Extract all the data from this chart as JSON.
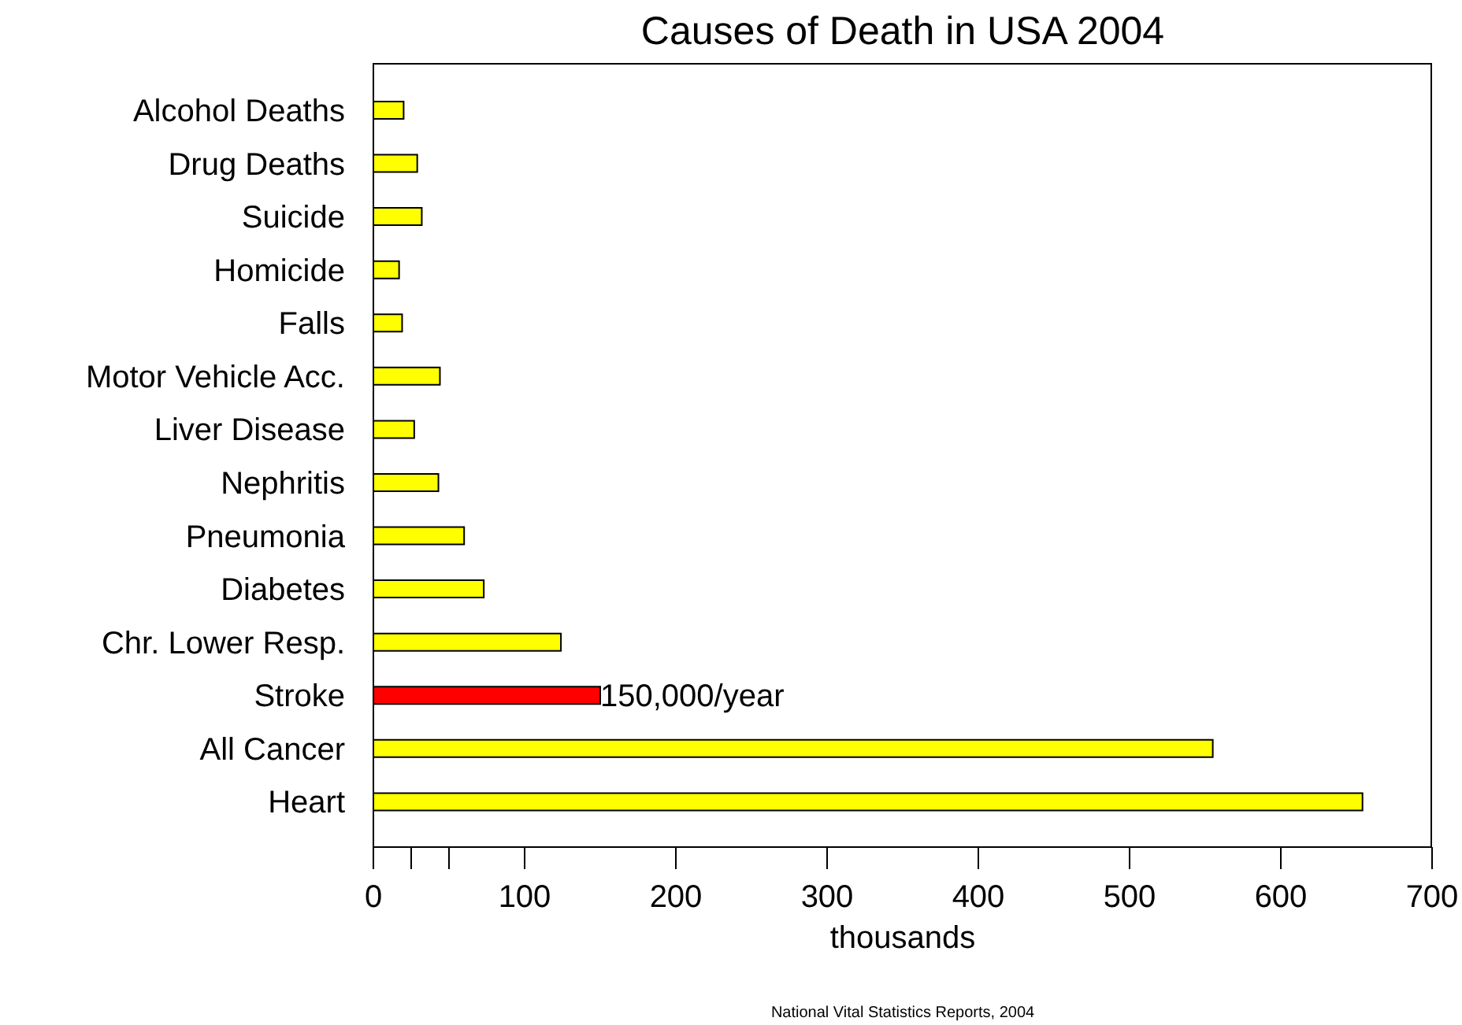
{
  "chart_data": {
    "type": "bar",
    "orientation": "horizontal",
    "title": "Causes of Death in USA 2004",
    "xlabel": "thousands",
    "categories": [
      "Alcohol Deaths",
      "Drug Deaths",
      "Suicide",
      "Homicide",
      "Falls",
      "Motor Vehicle Acc.",
      "Liver Disease",
      "Nephritis",
      "Pneumonia",
      "Diabetes",
      "Chr. Lower Resp.",
      "Stroke",
      "All Cancer",
      "Heart"
    ],
    "values": [
      20,
      29,
      32,
      17,
      19,
      44,
      27,
      43,
      60,
      73,
      124,
      150,
      555,
      654
    ],
    "colors": [
      "#ffff00",
      "#ffff00",
      "#ffff00",
      "#ffff00",
      "#ffff00",
      "#ffff00",
      "#ffff00",
      "#ffff00",
      "#ffff00",
      "#ffff00",
      "#ffff00",
      "#ff0000",
      "#ffff00",
      "#ffff00"
    ],
    "xlim": [
      0,
      700
    ],
    "xticks": [
      0,
      {
        "value": 25,
        "label": null
      },
      {
        "value": 50,
        "label": null
      },
      100,
      200,
      300,
      400,
      500,
      600,
      700
    ],
    "annotations": [
      {
        "text": "150,000/year",
        "x": 150,
        "y": "Stroke"
      },
      "National Vital Statistics Reports, 2004"
    ],
    "grid": false,
    "legend": false
  }
}
